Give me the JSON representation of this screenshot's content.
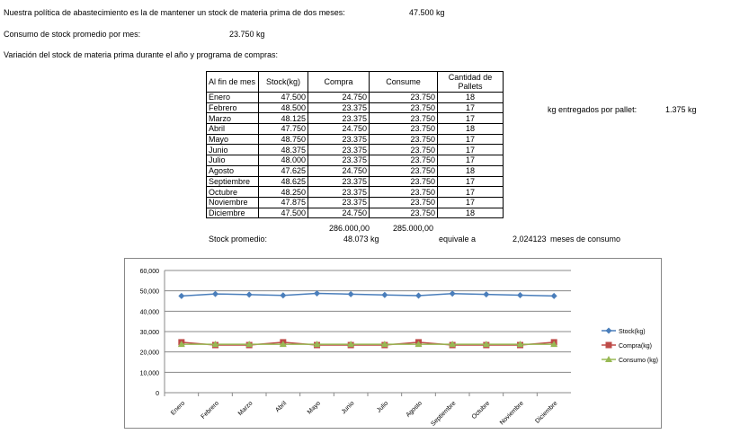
{
  "intro": {
    "policy_label": "Nuestra política de abastecimiento es la de mantener un stock de materia prima de dos meses:",
    "policy_value": "47.500  kg",
    "consumo_label": "Consumo de stock promedio por mes:",
    "consumo_value": "23.750  kg",
    "variacion_label": "Variación del stock de materia prima durante el año y programa de compras:",
    "pallet_label": "kg entregados por pallet:",
    "pallet_value": "1.375  kg"
  },
  "table": {
    "headers": [
      "Al fin de mes",
      "Stock(kg)",
      "Compra",
      "Consume",
      "Cantidad de Pallets"
    ],
    "rows": [
      [
        "Enero",
        "47.500",
        "24.750",
        "23.750",
        "18"
      ],
      [
        "Febrero",
        "48.500",
        "23.375",
        "23.750",
        "17"
      ],
      [
        "Marzo",
        "48.125",
        "23.375",
        "23.750",
        "17"
      ],
      [
        "Abril",
        "47.750",
        "24.750",
        "23.750",
        "18"
      ],
      [
        "Mayo",
        "48.750",
        "23.375",
        "23.750",
        "17"
      ],
      [
        "Junio",
        "48.375",
        "23.375",
        "23.750",
        "17"
      ],
      [
        "Julio",
        "48.000",
        "23.375",
        "23.750",
        "17"
      ],
      [
        "Agosto",
        "47.625",
        "24.750",
        "23.750",
        "18"
      ],
      [
        "Septiembre",
        "48.625",
        "23.375",
        "23.750",
        "17"
      ],
      [
        "Octubre",
        "48.250",
        "23.375",
        "23.750",
        "17"
      ],
      [
        "Noviembre",
        "47.875",
        "23.375",
        "23.750",
        "17"
      ],
      [
        "Diciembre",
        "47.500",
        "24.750",
        "23.750",
        "18"
      ]
    ],
    "total_compra": "286.000,00",
    "total_consume": "285.000,00"
  },
  "summary": {
    "stock_label": "Stock promedio:",
    "stock_value": "48.073  kg",
    "equivale": "equivale a",
    "meses_value": "2,024123",
    "meses_label": "meses de consumo"
  },
  "chart_data": {
    "type": "line",
    "categories": [
      "Enero",
      "Febrero",
      "Marzo",
      "Abril",
      "Mayo",
      "Junio",
      "Julio",
      "Agosto",
      "Septiembre",
      "Octubre",
      "Noviembre",
      "Diciembre"
    ],
    "ylim": [
      0,
      60000
    ],
    "yticks": [
      "0",
      "10,000",
      "20,000",
      "30,000",
      "40,000",
      "50,000",
      "60,000"
    ],
    "grid": true,
    "legend": "right",
    "series": [
      {
        "name": "Stock(kg)",
        "color": "#4a7ebb",
        "marker": "diamond",
        "values": [
          47500,
          48500,
          48125,
          47750,
          48750,
          48375,
          48000,
          47625,
          48625,
          48250,
          47875,
          47500
        ]
      },
      {
        "name": "Compra(kg)",
        "color": "#be4b48",
        "marker": "square",
        "values": [
          24750,
          23375,
          23375,
          24750,
          23375,
          23375,
          23375,
          24750,
          23375,
          23375,
          23375,
          24750
        ]
      },
      {
        "name": "Consumo (kg)",
        "color": "#98b954",
        "marker": "triangle",
        "values": [
          23750,
          23750,
          23750,
          23750,
          23750,
          23750,
          23750,
          23750,
          23750,
          23750,
          23750,
          23750
        ]
      }
    ]
  }
}
